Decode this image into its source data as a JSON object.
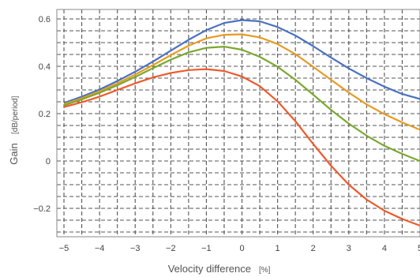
{
  "chart_data": {
    "type": "line",
    "title": "",
    "xlabel": "Velocity difference",
    "xlabel_unit": "[%]",
    "ylabel": "Gain",
    "ylabel_unit": "[dB/period]",
    "xlim": [
      -5.2,
      5.0
    ],
    "ylim": [
      -0.32,
      0.64
    ],
    "xticks": [
      -5,
      -4,
      -3,
      -2,
      -1,
      0,
      1,
      2,
      3,
      4,
      5
    ],
    "yticks": [
      -0.2,
      0,
      0.2,
      0.4,
      0.6
    ],
    "ytick_labels": [
      "−0.2",
      "0",
      "0.2",
      "0.4",
      "0.6"
    ],
    "xtick_labels": [
      "−5",
      "−4",
      "−3",
      "−2",
      "−1",
      "0",
      "1",
      "2",
      "3",
      "4",
      "5"
    ],
    "grid": true,
    "x": [
      -5,
      -4.5,
      -4,
      -3.5,
      -3,
      -2.5,
      -2,
      -1.5,
      -1,
      -0.5,
      0,
      0.5,
      1,
      1.5,
      2,
      2.5,
      3,
      3.5,
      4,
      4.5,
      5
    ],
    "series": [
      {
        "color": "#4a72c0",
        "values": [
          0.245,
          0.272,
          0.302,
          0.338,
          0.377,
          0.42,
          0.466,
          0.512,
          0.553,
          0.583,
          0.595,
          0.59,
          0.566,
          0.53,
          0.485,
          0.437,
          0.391,
          0.35,
          0.314,
          0.283,
          0.262
        ]
      },
      {
        "color": "#e69b22",
        "values": [
          0.24,
          0.265,
          0.294,
          0.328,
          0.365,
          0.405,
          0.447,
          0.487,
          0.518,
          0.533,
          0.535,
          0.522,
          0.494,
          0.451,
          0.398,
          0.343,
          0.289,
          0.239,
          0.198,
          0.163,
          0.132
        ]
      },
      {
        "color": "#7aa82e",
        "values": [
          0.235,
          0.26,
          0.288,
          0.32,
          0.355,
          0.392,
          0.428,
          0.459,
          0.478,
          0.483,
          0.47,
          0.44,
          0.398,
          0.343,
          0.28,
          0.216,
          0.158,
          0.107,
          0.064,
          0.03,
          0.0
        ]
      },
      {
        "color": "#ee5a2a",
        "values": [
          0.228,
          0.248,
          0.272,
          0.3,
          0.328,
          0.353,
          0.372,
          0.384,
          0.388,
          0.38,
          0.357,
          0.316,
          0.252,
          0.168,
          0.072,
          -0.02,
          -0.1,
          -0.163,
          -0.21,
          -0.245,
          -0.273
        ]
      }
    ]
  }
}
